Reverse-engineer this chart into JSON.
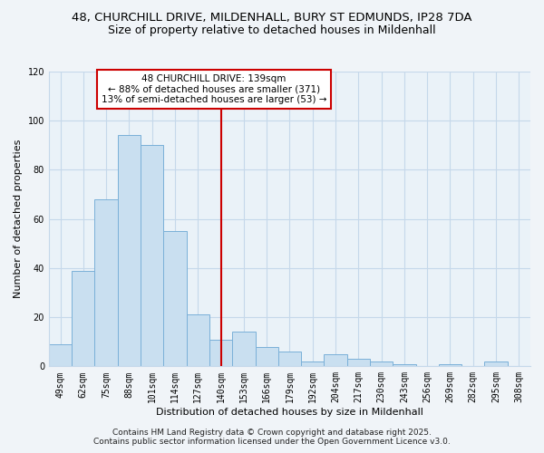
{
  "title_line1": "48, CHURCHILL DRIVE, MILDENHALL, BURY ST EDMUNDS, IP28 7DA",
  "title_line2": "Size of property relative to detached houses in Mildenhall",
  "xlabel": "Distribution of detached houses by size in Mildenhall",
  "ylabel": "Number of detached properties",
  "bar_labels": [
    "49sqm",
    "62sqm",
    "75sqm",
    "88sqm",
    "101sqm",
    "114sqm",
    "127sqm",
    "140sqm",
    "153sqm",
    "166sqm",
    "179sqm",
    "192sqm",
    "204sqm",
    "217sqm",
    "230sqm",
    "243sqm",
    "256sqm",
    "269sqm",
    "282sqm",
    "295sqm",
    "308sqm"
  ],
  "bar_values": [
    9,
    39,
    68,
    94,
    90,
    55,
    21,
    11,
    14,
    8,
    6,
    2,
    5,
    3,
    2,
    1,
    0,
    1,
    0,
    2,
    0
  ],
  "bar_color": "#c9dff0",
  "bar_edge_color": "#7ab0d8",
  "vline_x_index": 7,
  "vline_color": "#cc0000",
  "annotation_text": "48 CHURCHILL DRIVE: 139sqm\n← 88% of detached houses are smaller (371)\n13% of semi-detached houses are larger (53) →",
  "annotation_box_color": "#ffffff",
  "annotation_box_edge_color": "#cc0000",
  "ylim": [
    0,
    120
  ],
  "yticks": [
    0,
    20,
    40,
    60,
    80,
    100,
    120
  ],
  "footer_line1": "Contains HM Land Registry data © Crown copyright and database right 2025.",
  "footer_line2": "Contains public sector information licensed under the Open Government Licence v3.0.",
  "bg_color": "#f0f4f8",
  "plot_bg_color": "#eaf2f8",
  "grid_color": "#c5d8ea",
  "title_fontsize": 9.5,
  "subtitle_fontsize": 9,
  "label_fontsize": 8,
  "tick_fontsize": 7,
  "annotation_fontsize": 7.5,
  "footer_fontsize": 6.5
}
